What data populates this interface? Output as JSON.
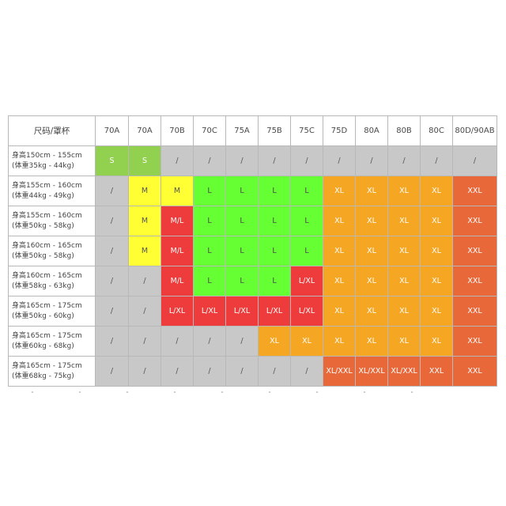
{
  "table": {
    "corner_label": "尺码/罩杯",
    "columns": [
      "70A",
      "70A",
      "70B",
      "70C",
      "75A",
      "75B",
      "75C",
      "75D",
      "80A",
      "80B",
      "80C",
      "80D/90AB"
    ],
    "rows": [
      {
        "height": "身高150cm - 155cm",
        "weight": "(体重35kg - 44kg)",
        "cells": [
          {
            "v": "S",
            "c": "lg"
          },
          {
            "v": "S",
            "c": "lg"
          },
          {
            "v": "/",
            "c": "g"
          },
          {
            "v": "/",
            "c": "g"
          },
          {
            "v": "/",
            "c": "g"
          },
          {
            "v": "/",
            "c": "g"
          },
          {
            "v": "/",
            "c": "g"
          },
          {
            "v": "/",
            "c": "g"
          },
          {
            "v": "/",
            "c": "g"
          },
          {
            "v": "/",
            "c": "g"
          },
          {
            "v": "/",
            "c": "g"
          },
          {
            "v": "/",
            "c": "g"
          }
        ]
      },
      {
        "height": "身高155cm - 160cm",
        "weight": "(体重44kg - 49kg)",
        "cells": [
          {
            "v": "/",
            "c": "g"
          },
          {
            "v": "M",
            "c": "y"
          },
          {
            "v": "M",
            "c": "y"
          },
          {
            "v": "L",
            "c": "gr"
          },
          {
            "v": "L",
            "c": "gr"
          },
          {
            "v": "L",
            "c": "gr"
          },
          {
            "v": "L",
            "c": "gr"
          },
          {
            "v": "XL",
            "c": "o"
          },
          {
            "v": "XL",
            "c": "o"
          },
          {
            "v": "XL",
            "c": "o"
          },
          {
            "v": "XL",
            "c": "o"
          },
          {
            "v": "XXL",
            "c": "do"
          }
        ]
      },
      {
        "height": "身高155cm - 160cm",
        "weight": "(体重50kg - 58kg)",
        "cells": [
          {
            "v": "/",
            "c": "g"
          },
          {
            "v": "M",
            "c": "y"
          },
          {
            "v": "M/L",
            "c": "r"
          },
          {
            "v": "L",
            "c": "gr"
          },
          {
            "v": "L",
            "c": "gr"
          },
          {
            "v": "L",
            "c": "gr"
          },
          {
            "v": "L",
            "c": "gr"
          },
          {
            "v": "XL",
            "c": "o"
          },
          {
            "v": "XL",
            "c": "o"
          },
          {
            "v": "XL",
            "c": "o"
          },
          {
            "v": "XL",
            "c": "o"
          },
          {
            "v": "XXL",
            "c": "do"
          }
        ]
      },
      {
        "height": "身高160cm - 165cm",
        "weight": "(体重50kg - 58kg)",
        "cells": [
          {
            "v": "/",
            "c": "g"
          },
          {
            "v": "M",
            "c": "y"
          },
          {
            "v": "M/L",
            "c": "r"
          },
          {
            "v": "L",
            "c": "gr"
          },
          {
            "v": "L",
            "c": "gr"
          },
          {
            "v": "L",
            "c": "gr"
          },
          {
            "v": "L",
            "c": "gr"
          },
          {
            "v": "XL",
            "c": "o"
          },
          {
            "v": "XL",
            "c": "o"
          },
          {
            "v": "XL",
            "c": "o"
          },
          {
            "v": "XL",
            "c": "o"
          },
          {
            "v": "XXL",
            "c": "do"
          }
        ]
      },
      {
        "height": "身高160cm - 165cm",
        "weight": "(体重58kg - 63kg)",
        "cells": [
          {
            "v": "/",
            "c": "g"
          },
          {
            "v": "/",
            "c": "g"
          },
          {
            "v": "M/L",
            "c": "r"
          },
          {
            "v": "L",
            "c": "gr"
          },
          {
            "v": "L",
            "c": "gr"
          },
          {
            "v": "L",
            "c": "gr"
          },
          {
            "v": "L/XL",
            "c": "r"
          },
          {
            "v": "XL",
            "c": "o"
          },
          {
            "v": "XL",
            "c": "o"
          },
          {
            "v": "XL",
            "c": "o"
          },
          {
            "v": "XL",
            "c": "o"
          },
          {
            "v": "XXL",
            "c": "do"
          }
        ]
      },
      {
        "height": "身高165cm - 175cm",
        "weight": "(体重50kg - 60kg)",
        "cells": [
          {
            "v": "/",
            "c": "g"
          },
          {
            "v": "/",
            "c": "g"
          },
          {
            "v": "L/XL",
            "c": "r"
          },
          {
            "v": "L/XL",
            "c": "r"
          },
          {
            "v": "L/XL",
            "c": "r"
          },
          {
            "v": "L/XL",
            "c": "r"
          },
          {
            "v": "L/XL",
            "c": "r"
          },
          {
            "v": "XL",
            "c": "o"
          },
          {
            "v": "XL",
            "c": "o"
          },
          {
            "v": "XL",
            "c": "o"
          },
          {
            "v": "XL",
            "c": "o"
          },
          {
            "v": "XXL",
            "c": "do"
          }
        ]
      },
      {
        "height": "身高165cm - 175cm",
        "weight": "(体重60kg - 68kg)",
        "cells": [
          {
            "v": "/",
            "c": "g"
          },
          {
            "v": "/",
            "c": "g"
          },
          {
            "v": "/",
            "c": "g"
          },
          {
            "v": "/",
            "c": "g"
          },
          {
            "v": "/",
            "c": "g"
          },
          {
            "v": "XL",
            "c": "o"
          },
          {
            "v": "XL",
            "c": "o"
          },
          {
            "v": "XL",
            "c": "o"
          },
          {
            "v": "XL",
            "c": "o"
          },
          {
            "v": "XL",
            "c": "o"
          },
          {
            "v": "XL",
            "c": "o"
          },
          {
            "v": "XXL",
            "c": "do"
          }
        ]
      },
      {
        "height": "身高165cm - 175cm",
        "weight": "(体重68kg - 75kg)",
        "cells": [
          {
            "v": "/",
            "c": "g"
          },
          {
            "v": "/",
            "c": "g"
          },
          {
            "v": "/",
            "c": "g"
          },
          {
            "v": "/",
            "c": "g"
          },
          {
            "v": "/",
            "c": "g"
          },
          {
            "v": "/",
            "c": "g"
          },
          {
            "v": "/",
            "c": "g"
          },
          {
            "v": "XL/XXL",
            "c": "do"
          },
          {
            "v": "XL/XXL",
            "c": "do"
          },
          {
            "v": "XL/XXL",
            "c": "do"
          },
          {
            "v": "XXL",
            "c": "do"
          },
          {
            "v": "XXL",
            "c": "do"
          }
        ]
      }
    ]
  },
  "colors": {
    "na_gray": "#c8c8c8",
    "size_s": "#92d050",
    "size_m": "#ffff33",
    "size_l": "#66ff33",
    "size_mixed": "#ee3b3b",
    "size_xl": "#f5a623",
    "size_xxl": "#e8683a"
  }
}
